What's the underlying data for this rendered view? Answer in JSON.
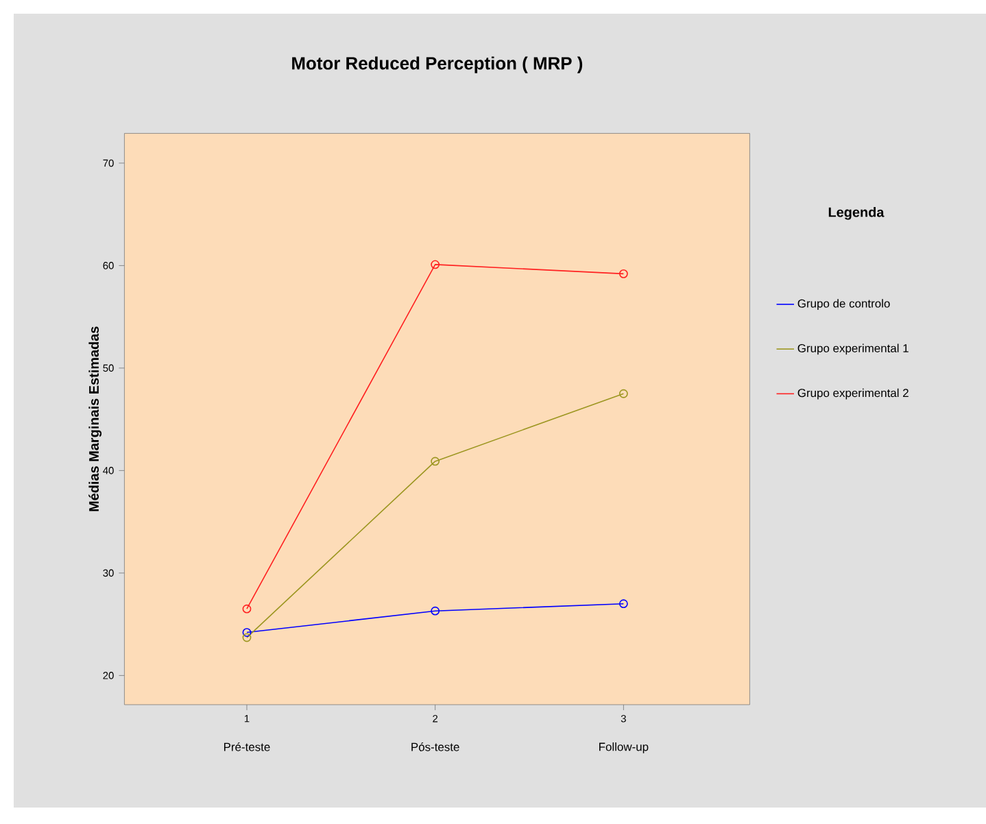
{
  "chart_data": {
    "type": "line",
    "title": "Motor Reduced Perception ( MRP )",
    "ylabel": "Médias Marginais Estimadas",
    "legend_title": "Legenda",
    "x": [
      1,
      2,
      3
    ],
    "xlim": [
      0.35,
      3.67
    ],
    "xticks": [
      1,
      2,
      3
    ],
    "ylim": [
      17.15,
      72.9
    ],
    "yticks": [
      20,
      30,
      40,
      50,
      60,
      70
    ],
    "series": [
      {
        "name": "Grupo de controlo",
        "color": "#0000ff",
        "values": [
          24.2,
          26.3,
          27.0
        ]
      },
      {
        "name": "Grupo experimental 1",
        "color": "#9c9620",
        "values": [
          23.7,
          40.9,
          47.5
        ]
      },
      {
        "name": "Grupo experimental 2",
        "color": "#ff2020",
        "values": [
          26.5,
          60.1,
          59.2
        ]
      }
    ],
    "annotations": [
      "Pré-teste",
      "Pós-teste",
      "Follow-up"
    ],
    "marker": "circle",
    "legend": "right",
    "grid": false
  }
}
